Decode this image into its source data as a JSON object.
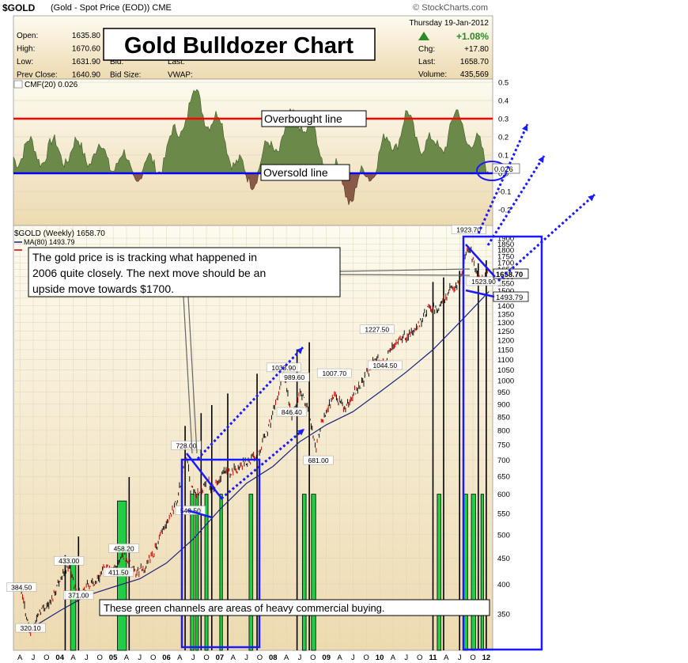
{
  "header": {
    "symbol": "$GOLD",
    "description": "(Gold - Spot Price (EOD))",
    "exchange": "CME",
    "source": "© StockCharts.com"
  },
  "quote": {
    "date": "Thursday  19-Jan-2012",
    "change_pct": "+1.08%",
    "rows_left": [
      {
        "label": "Open:",
        "value": "1635.80"
      },
      {
        "label": "High:",
        "value": "1670.60"
      },
      {
        "label": "Low:",
        "value": "1631.90"
      },
      {
        "label": "Prev Close:",
        "value": "1640.90"
      }
    ],
    "rows_mid": [
      {
        "label": "Bid:",
        "value": ""
      },
      {
        "label": "Bid Size:",
        "value": ""
      }
    ],
    "rows_mid2": [
      {
        "label": "Last:",
        "value": ""
      },
      {
        "label": "VWAP:",
        "value": ""
      }
    ],
    "rows_right": [
      {
        "label": "Chg:",
        "value": "+17.80"
      },
      {
        "label": "Last:",
        "value": "1658.70"
      },
      {
        "label": "Volume:",
        "value": "435,569"
      }
    ]
  },
  "title_box": "Gold Bulldozer Chart",
  "annotations": {
    "overbought": "Overbought line",
    "oversold": "Oversold line",
    "note": [
      "The gold price is is tracking what happened in",
      "2006 quite closely.  The next move should be an",
      "upside move towards $1700."
    ],
    "channels": "These green channels are areas of heavy commercial buying."
  },
  "colors": {
    "background_top": "#fdfbf0",
    "background_bottom": "#eddab0",
    "cmf_fill": "#6b8a4a",
    "cmf_negative": "#8a5a48",
    "overbought_line": "#ff0000",
    "oversold_line": "#0000ff",
    "ma_line": "#1a237e",
    "price_up": "#111111",
    "price_down": "#cc0000",
    "channel_green": "#22cc44",
    "box_blue": "#1a1aff"
  },
  "chart_data": [
    {
      "type": "area",
      "title": "CMF(20) 0.026",
      "ylim": [
        -0.25,
        0.52
      ],
      "y_ticks": [
        "0.5",
        "0.4",
        "0.3",
        "0.2",
        "0.1",
        "0.0",
        "-0.1",
        "-0.2"
      ],
      "last_value": "0.026",
      "overbought_level": 0.3,
      "oversold_level": 0.0,
      "x": [
        2004.5,
        2005.0,
        2005.5,
        2006.0,
        2006.5,
        2007.0,
        2007.5,
        2008.0,
        2008.5,
        2009.0,
        2009.5,
        2010.0,
        2010.5,
        2011.0,
        2011.5,
        2012.05
      ],
      "values": [
        0.12,
        0.08,
        0.0,
        0.1,
        0.42,
        0.25,
        -0.05,
        0.15,
        0.32,
        0.05,
        -0.12,
        0.1,
        0.28,
        0.12,
        0.3,
        0.026
      ]
    },
    {
      "type": "line",
      "title": "$GOLD (Weekly) 1658.70",
      "legend": [
        "MA(80) 1493.79"
      ],
      "ylim": [
        315,
        1960
      ],
      "scale": "log",
      "y_ticks": [
        "1900",
        "1850",
        "1800",
        "1750",
        "1700",
        "1650",
        "1600",
        "1550",
        "1500",
        "1450",
        "1400",
        "1350",
        "1300",
        "1250",
        "1200",
        "1150",
        "1100",
        "1050",
        "1000",
        "950",
        "900",
        "850",
        "800",
        "750",
        "700",
        "650",
        "600",
        "550",
        "500",
        "450",
        "400",
        "350"
      ],
      "x_tick_labels": [
        "A",
        "J",
        "O",
        "04",
        "A",
        "J",
        "O",
        "05",
        "A",
        "J",
        "O",
        "06",
        "A",
        "J",
        "O",
        "07",
        "A",
        "J",
        "O",
        "08",
        "A",
        "J",
        "O",
        "09",
        "A",
        "J",
        "O",
        "10",
        "A",
        "J",
        "O",
        "11",
        "A",
        "J",
        "O",
        "12"
      ],
      "price_series": {
        "x": [
          2003.28,
          2003.45,
          2003.62,
          2003.83,
          2004.0,
          2004.17,
          2004.33,
          2004.5,
          2004.67,
          2004.83,
          2005.0,
          2005.2,
          2005.4,
          2005.6,
          2005.8,
          2006.0,
          2006.2,
          2006.37,
          2006.45,
          2006.55,
          2006.75,
          2006.9,
          2007.1,
          2007.3,
          2007.5,
          2007.7,
          2007.9,
          2008.05,
          2008.2,
          2008.35,
          2008.5,
          2008.65,
          2008.8,
          2008.95,
          2009.15,
          2009.35,
          2009.55,
          2009.7,
          2009.9,
          2010.1,
          2010.3,
          2010.5,
          2010.7,
          2010.9,
          2011.1,
          2011.3,
          2011.5,
          2011.67,
          2011.8,
          2011.95,
          2012.05
        ],
        "values": [
          384.5,
          320.1,
          355,
          370,
          410,
          433,
          380,
          395,
          405,
          430,
          425,
          458.2,
          420,
          430,
          470,
          530,
          580,
          728,
          620,
          600,
          630,
          620,
          660,
          670,
          690,
          720,
          800,
          900,
          1033.9,
          850,
          950,
          880,
          740,
          850,
          940,
          880,
          960,
          1000,
          1100,
          1090,
          1200,
          1227.5,
          1260,
          1380,
          1380,
          1500,
          1550,
          1850,
          1650,
          1560,
          1658.7
        ]
      },
      "ma_series": {
        "x": [
          2003.5,
          2004.0,
          2004.5,
          2005.0,
          2005.5,
          2006.0,
          2006.5,
          2007.0,
          2007.5,
          2008.0,
          2008.5,
          2009.0,
          2009.5,
          2010.0,
          2010.5,
          2011.0,
          2011.5,
          2012.05
        ],
        "values": [
          330,
          355,
          380,
          395,
          410,
          440,
          490,
          560,
          630,
          680,
          760,
          820,
          870,
          950,
          1040,
          1150,
          1300,
          1493.79
        ]
      },
      "labels": [
        {
          "x": 2003.28,
          "y": 384.5,
          "text": "384.50"
        },
        {
          "x": 2003.45,
          "y": 320.1,
          "text": "320.10"
        },
        {
          "x": 2004.17,
          "y": 433.0,
          "text": "433.00"
        },
        {
          "x": 2004.35,
          "y": 371.0,
          "text": "371.00"
        },
        {
          "x": 2005.2,
          "y": 458.2,
          "text": "458.20"
        },
        {
          "x": 2005.1,
          "y": 411.5,
          "text": "411.50"
        },
        {
          "x": 2006.37,
          "y": 728.0,
          "text": "728.00"
        },
        {
          "x": 2006.45,
          "y": 543.5,
          "text": "543.50"
        },
        {
          "x": 2008.2,
          "y": 1033.9,
          "text": "1033.90"
        },
        {
          "x": 2008.4,
          "y": 989.6,
          "text": "989.60"
        },
        {
          "x": 2008.35,
          "y": 846.4,
          "text": "846.40"
        },
        {
          "x": 2008.85,
          "y": 681.0,
          "text": "681.00"
        },
        {
          "x": 2009.15,
          "y": 1007.7,
          "text": "1007.70"
        },
        {
          "x": 2010.1,
          "y": 1044.5,
          "text": "1044.50"
        },
        {
          "x": 2009.95,
          "y": 1227.5,
          "text": "1227.50"
        },
        {
          "x": 2011.67,
          "y": 1923.7,
          "text": "1923.70"
        },
        {
          "x": 2011.95,
          "y": 1523.9,
          "text": "1523.90"
        }
      ],
      "last_price_tag": "1658.70",
      "ma_tag": "1493.79"
    }
  ]
}
